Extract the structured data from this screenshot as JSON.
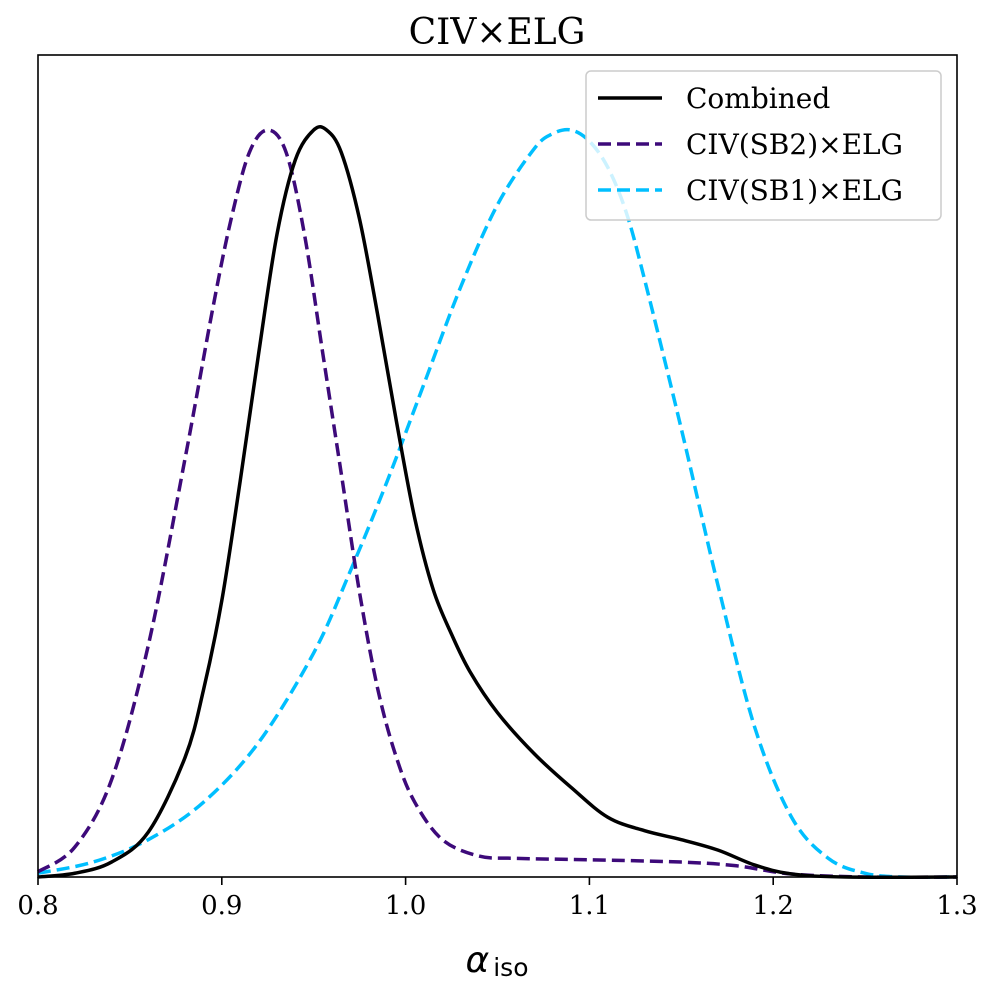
{
  "chart_data": {
    "type": "line",
    "title": "CIV×ELG",
    "xlabel": "α_iso",
    "xlabel_main": "α",
    "xlabel_sub": "iso",
    "ylabel": "",
    "xlim": [
      0.8,
      1.3
    ],
    "ylim": [
      0,
      1.03
    ],
    "xticks": [
      0.8,
      0.9,
      1.0,
      1.1,
      1.2,
      1.3
    ],
    "xtick_labels": [
      "0.8",
      "0.9",
      "1.0",
      "1.1",
      "1.2",
      "1.3"
    ],
    "legend_position": "top-right",
    "series": [
      {
        "name": "Combined",
        "color": "#000000",
        "style": "solid",
        "x": [
          0.8,
          0.82,
          0.84,
          0.86,
          0.88,
          0.89,
          0.9,
          0.91,
          0.92,
          0.93,
          0.94,
          0.95,
          0.957,
          0.965,
          0.975,
          0.985,
          0.995,
          1.005,
          1.015,
          1.025,
          1.035,
          1.05,
          1.07,
          1.09,
          1.11,
          1.13,
          1.15,
          1.17,
          1.19,
          1.21,
          1.24,
          1.3
        ],
        "y": [
          0.0,
          0.005,
          0.02,
          0.06,
          0.16,
          0.25,
          0.37,
          0.53,
          0.7,
          0.86,
          0.96,
          1.0,
          1.0,
          0.97,
          0.88,
          0.75,
          0.61,
          0.48,
          0.385,
          0.325,
          0.275,
          0.22,
          0.165,
          0.12,
          0.08,
          0.062,
          0.05,
          0.036,
          0.016,
          0.004,
          0.0,
          0.0
        ]
      },
      {
        "name": "CIV(SB2)×ELG",
        "color": "#3d0a7a",
        "style": "dashed",
        "x": [
          0.8,
          0.82,
          0.84,
          0.86,
          0.88,
          0.895,
          0.905,
          0.915,
          0.925,
          0.935,
          0.945,
          0.955,
          0.965,
          0.975,
          0.985,
          0.995,
          1.005,
          1.02,
          1.04,
          1.06,
          1.1,
          1.15,
          1.18,
          1.21,
          1.25,
          1.3
        ],
        "y": [
          0.007,
          0.04,
          0.13,
          0.31,
          0.56,
          0.76,
          0.88,
          0.97,
          1.0,
          0.97,
          0.86,
          0.7,
          0.54,
          0.38,
          0.25,
          0.16,
          0.1,
          0.05,
          0.028,
          0.025,
          0.023,
          0.02,
          0.015,
          0.004,
          0.0,
          0.0
        ]
      },
      {
        "name": "CIV(SB1)×ELG",
        "color": "#00bfff",
        "style": "dashed",
        "x": [
          0.8,
          0.83,
          0.86,
          0.89,
          0.92,
          0.95,
          0.97,
          0.99,
          1.01,
          1.03,
          1.05,
          1.07,
          1.08,
          1.09,
          1.1,
          1.11,
          1.12,
          1.13,
          1.15,
          1.17,
          1.19,
          1.21,
          1.23,
          1.25,
          1.27,
          1.3
        ],
        "y": [
          0.005,
          0.02,
          0.05,
          0.1,
          0.18,
          0.3,
          0.41,
          0.53,
          0.66,
          0.79,
          0.9,
          0.975,
          0.995,
          1.0,
          0.985,
          0.95,
          0.89,
          0.8,
          0.6,
          0.39,
          0.2,
          0.08,
          0.025,
          0.005,
          0.0,
          0.0
        ]
      }
    ]
  }
}
